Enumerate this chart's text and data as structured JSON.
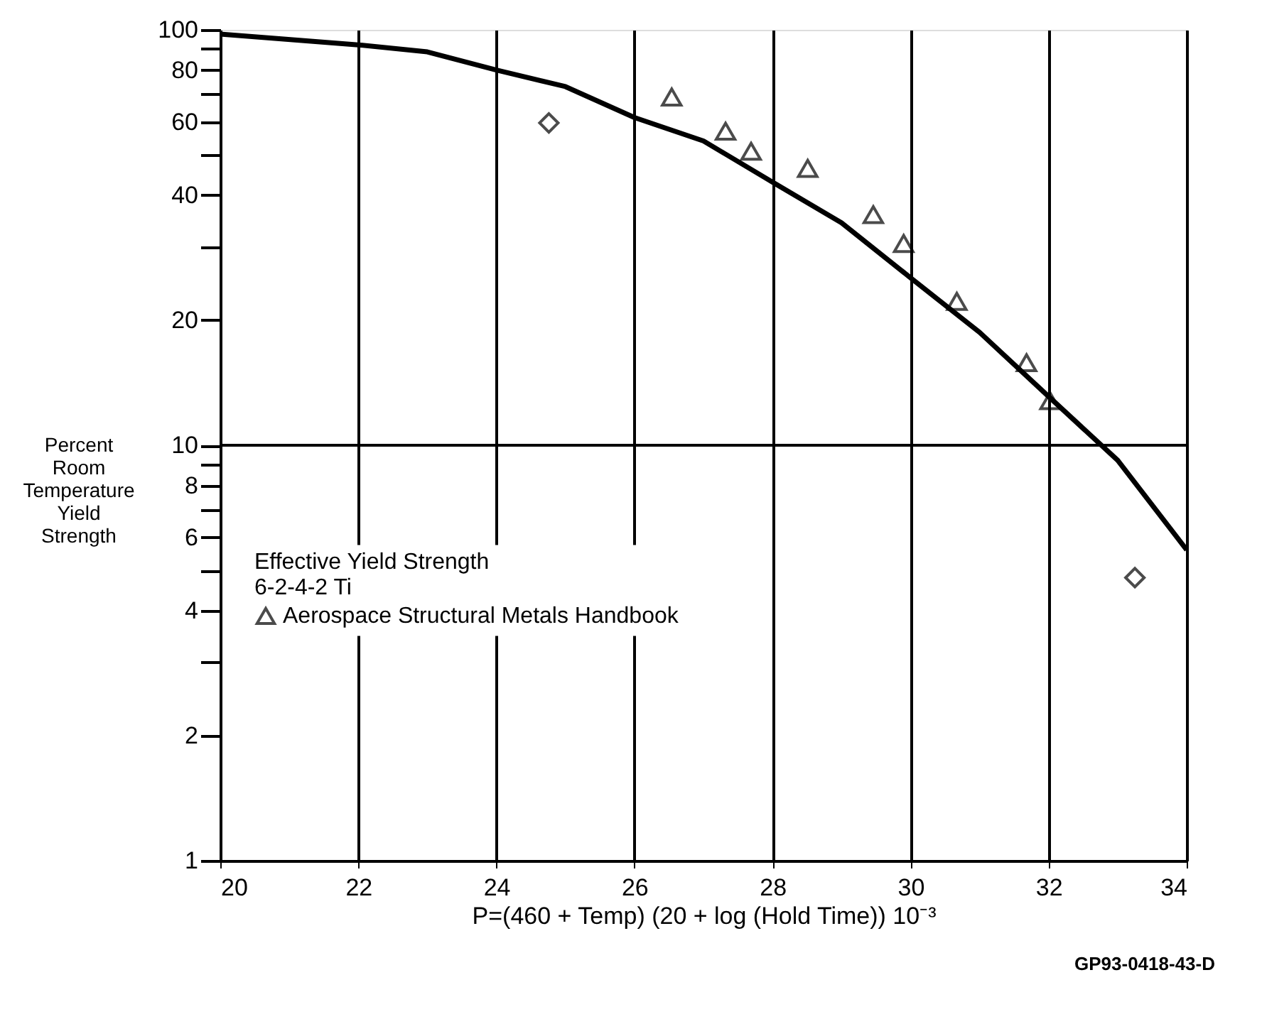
{
  "chart_data": {
    "type": "scatter",
    "xlabel": "P=(460 + Temp) (20 + log (Hold Time)) 10⁻³",
    "ylabel": "Percent Room Temperature Yield Strength",
    "legend_title": "Effective Yield Strength\n6-2-4-2 Ti",
    "annotations": [
      "GP93-0418-43-D"
    ],
    "log": "y",
    "grid": "x",
    "legend": "left",
    "xlim": [
      20,
      34
    ],
    "xticks": [
      20,
      22,
      24,
      26,
      28,
      30,
      32,
      34
    ],
    "ylim": [
      1,
      100
    ],
    "yticks": [
      1,
      2,
      {
        "value": 3,
        "label": null
      },
      4,
      {
        "value": 5,
        "label": null
      },
      6,
      {
        "value": 7,
        "label": null
      },
      8,
      {
        "value": 9,
        "label": null
      },
      10,
      20,
      {
        "value": 30,
        "label": null
      },
      40,
      {
        "value": 50,
        "label": null
      },
      60,
      {
        "value": 70,
        "label": null
      },
      80,
      {
        "value": 90,
        "label": null
      },
      100
    ],
    "ref_lines": [
      {
        "axis": "y",
        "value": 10,
        "label": null,
        "color": "#000000"
      }
    ],
    "series": [
      {
        "type": "line",
        "color": "#000000",
        "marker": "none",
        "line_style": "solid",
        "x": [
          20,
          22,
          23,
          24,
          25,
          26,
          27,
          28,
          29,
          30,
          31,
          32,
          33,
          34
        ],
        "values": [
          97.7,
          92,
          88.5,
          80,
          73,
          61.5,
          54,
          43,
          34.3,
          25.3,
          18.7,
          13.1,
          9.2,
          5.6
        ]
      },
      {
        "color": "#000000",
        "marker": "diamond",
        "x": [
          24.76,
          33.25
        ],
        "values": [
          59.7,
          4.8
        ]
      },
      {
        "name": "Aerospace Structural Metals Handbook",
        "color": "#000000",
        "marker": "triangle",
        "x": [
          26.54,
          27.32,
          27.69,
          28.51,
          29.46,
          29.9,
          30.67,
          31.68,
          32.02
        ],
        "values": [
          68.9,
          57,
          51,
          46.4,
          35.9,
          30.6,
          22.2,
          15.8,
          12.8
        ]
      }
    ]
  }
}
